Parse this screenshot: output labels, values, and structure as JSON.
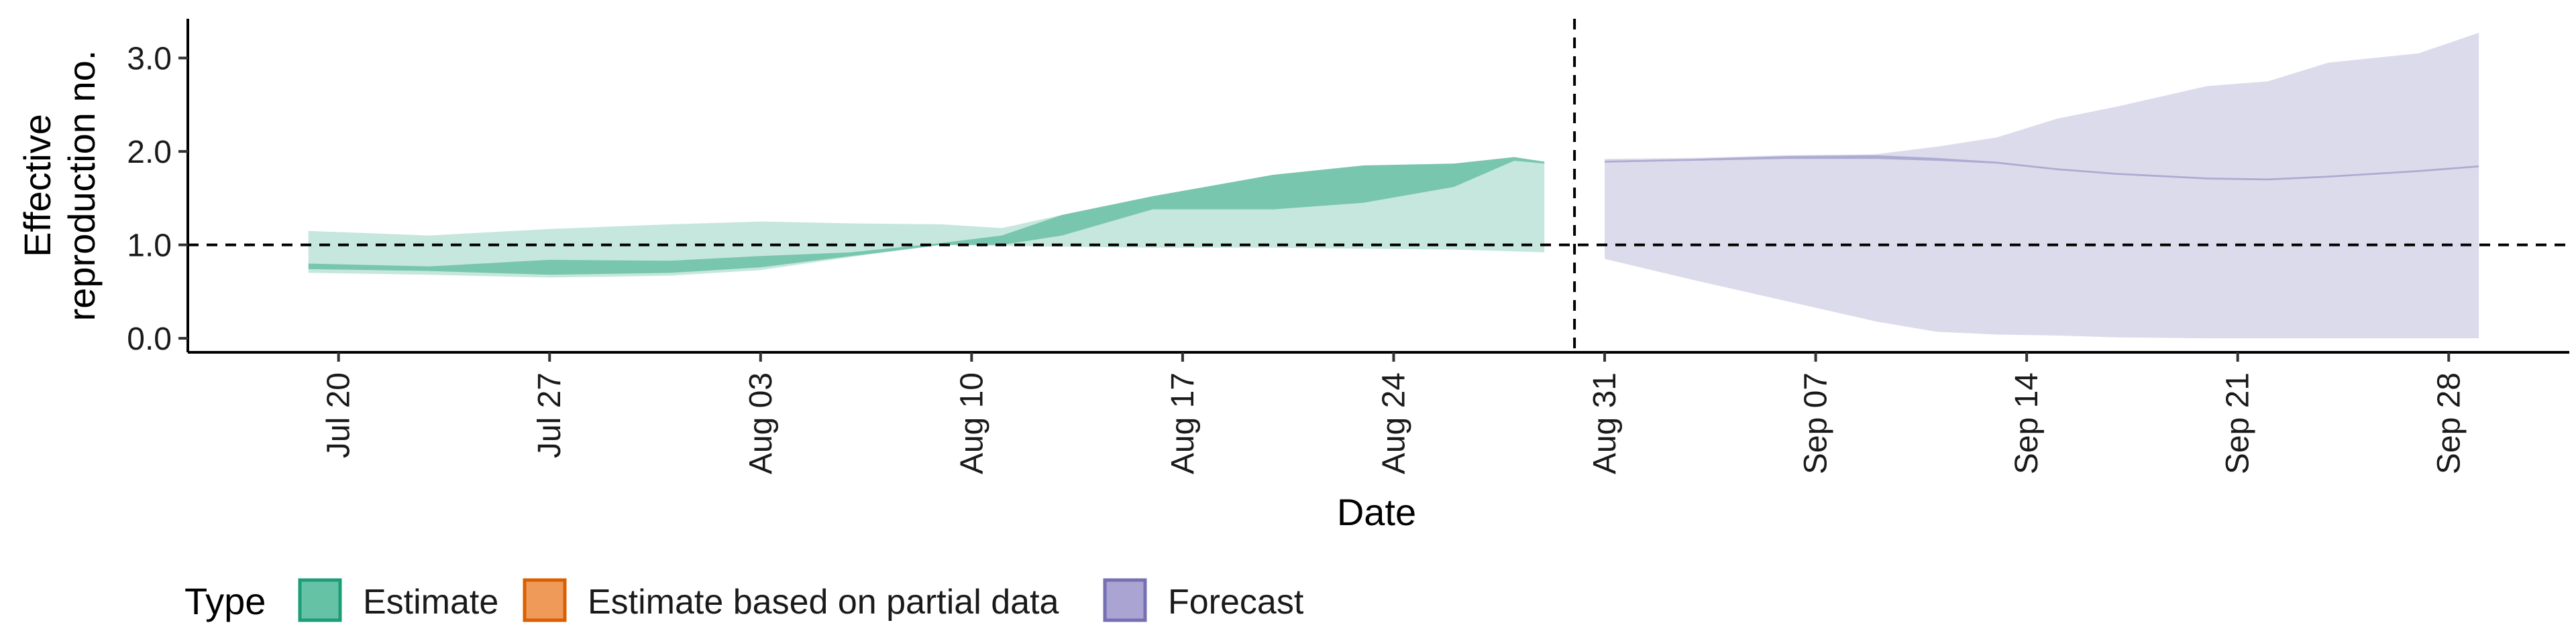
{
  "chart_data": {
    "type": "area",
    "title": "",
    "xlabel": "Date",
    "ylabel": "Effective\nreproduction no.",
    "x_ticks": [
      "Jul 20",
      "Jul 27",
      "Aug 03",
      "Aug 10",
      "Aug 17",
      "Aug 24",
      "Aug 31",
      "Sep 07",
      "Sep 14",
      "Sep 21",
      "Sep 28"
    ],
    "x_tick_dates": [
      "2020-07-20",
      "2020-07-27",
      "2020-08-03",
      "2020-08-10",
      "2020-08-17",
      "2020-08-24",
      "2020-08-31",
      "2020-09-07",
      "2020-09-14",
      "2020-09-21",
      "2020-09-28"
    ],
    "xlim": [
      "2020-07-15",
      "2020-10-02"
    ],
    "y_ticks": [
      "0.0",
      "1.0",
      "2.0",
      "3.0"
    ],
    "y_tick_values": [
      0,
      1,
      2,
      3
    ],
    "ylim": [
      -0.15,
      3.42
    ],
    "reference_line_y": 1.0,
    "reference_line_date": "2020-08-30",
    "grid": false,
    "legend": {
      "title": "Type",
      "position": "bottom-left",
      "items": [
        {
          "label": "Estimate",
          "fill": "#66c2a5",
          "stroke": "#1b9e77"
        },
        {
          "label": "Estimate based on partial data",
          "fill": "#f09a5a",
          "stroke": "#d95f02"
        },
        {
          "label": "Forecast",
          "fill": "#a9a4d2",
          "stroke": "#7570b3"
        }
      ]
    },
    "series": [
      {
        "type_label": "Estimate",
        "fill_color": "#1b9e77",
        "points": [
          {
            "x": "2020-07-19",
            "lo90": 0.7,
            "hi90": 1.15,
            "lo50": 0.74,
            "hi50": 0.8
          },
          {
            "x": "2020-07-23",
            "lo90": 0.68,
            "hi90": 1.1,
            "lo50": 0.72,
            "hi50": 0.77
          },
          {
            "x": "2020-07-27",
            "lo90": 0.65,
            "hi90": 1.17,
            "lo50": 0.68,
            "hi50": 0.84
          },
          {
            "x": "2020-07-31",
            "lo90": 0.67,
            "hi90": 1.22,
            "lo50": 0.7,
            "hi50": 0.83
          },
          {
            "x": "2020-08-03",
            "lo90": 0.73,
            "hi90": 1.25,
            "lo50": 0.76,
            "hi50": 0.88
          },
          {
            "x": "2020-08-06",
            "lo90": 0.87,
            "hi90": 1.23,
            "lo50": 0.88,
            "hi50": 0.92
          },
          {
            "x": "2020-08-09",
            "lo90": 1.0,
            "hi90": 1.22,
            "lo50": 1.0,
            "hi50": 1.02
          },
          {
            "x": "2020-08-11",
            "lo90": 0.99,
            "hi90": 1.18,
            "lo50": 1.0,
            "hi50": 1.1
          },
          {
            "x": "2020-08-13",
            "lo90": 0.98,
            "hi90": 1.32,
            "lo50": 1.1,
            "hi50": 1.32
          },
          {
            "x": "2020-08-16",
            "lo90": 0.97,
            "hi90": 1.52,
            "lo50": 1.38,
            "hi50": 1.52
          },
          {
            "x": "2020-08-20",
            "lo90": 0.97,
            "hi90": 1.75,
            "lo50": 1.38,
            "hi50": 1.75
          },
          {
            "x": "2020-08-23",
            "lo90": 0.96,
            "hi90": 1.85,
            "lo50": 1.45,
            "hi50": 1.85
          },
          {
            "x": "2020-08-26",
            "lo90": 0.95,
            "hi90": 1.87,
            "lo50": 1.62,
            "hi50": 1.87
          },
          {
            "x": "2020-08-28",
            "lo90": 0.93,
            "hi90": 1.94,
            "lo50": 1.9,
            "hi50": 1.94
          },
          {
            "x": "2020-08-29",
            "lo90": 0.92,
            "hi90": 1.89,
            "lo50": 1.87,
            "hi50": 1.89
          }
        ]
      },
      {
        "type_label": "Forecast",
        "fill_color": "#7570b3",
        "points": [
          {
            "x": "2020-08-31",
            "lo90": 0.85,
            "hi90": 1.92,
            "lo50": 1.88,
            "hi50": 1.9
          },
          {
            "x": "2020-09-03",
            "lo90": 0.62,
            "hi90": 1.93,
            "lo50": 1.9,
            "hi50": 1.92
          },
          {
            "x": "2020-09-06",
            "lo90": 0.4,
            "hi90": 1.96,
            "lo50": 1.92,
            "hi50": 1.95
          },
          {
            "x": "2020-09-09",
            "lo90": 0.18,
            "hi90": 1.97,
            "lo50": 1.92,
            "hi50": 1.96
          },
          {
            "x": "2020-09-11",
            "lo90": 0.07,
            "hi90": 2.05,
            "lo50": 1.9,
            "hi50": 1.93
          },
          {
            "x": "2020-09-13",
            "lo90": 0.04,
            "hi90": 2.15,
            "lo50": 1.87,
            "hi50": 1.89
          },
          {
            "x": "2020-09-15",
            "lo90": 0.03,
            "hi90": 2.35,
            "lo50": 1.8,
            "hi50": 1.82
          },
          {
            "x": "2020-09-17",
            "lo90": 0.01,
            "hi90": 2.48,
            "lo50": 1.75,
            "hi50": 1.77
          },
          {
            "x": "2020-09-20",
            "lo90": 0.0,
            "hi90": 2.7,
            "lo50": 1.7,
            "hi50": 1.72
          },
          {
            "x": "2020-09-22",
            "lo90": 0.0,
            "hi90": 2.75,
            "lo50": 1.69,
            "hi50": 1.71
          },
          {
            "x": "2020-09-24",
            "lo90": 0.0,
            "hi90": 2.95,
            "lo50": 1.72,
            "hi50": 1.74
          },
          {
            "x": "2020-09-27",
            "lo90": 0.0,
            "hi90": 3.05,
            "lo50": 1.78,
            "hi50": 1.8
          },
          {
            "x": "2020-09-29",
            "lo90": 0.0,
            "hi90": 3.27,
            "lo50": 1.83,
            "hi50": 1.85
          }
        ]
      }
    ]
  }
}
